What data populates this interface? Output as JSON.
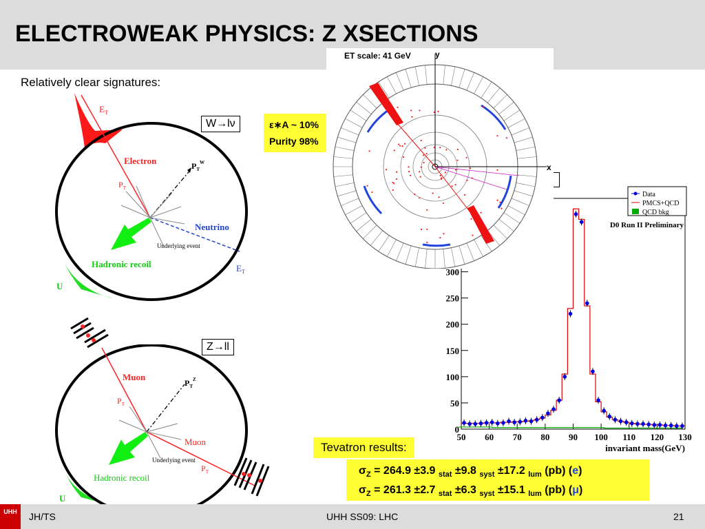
{
  "slide": {
    "title": "ELECTROWEAK PHYSICS: Z XSECTIONS",
    "subtitle": "Relatively clear signatures:"
  },
  "w_diagram": {
    "box_label": "W→lν",
    "et_top": "E",
    "et_top_sub": "T",
    "electron": "Electron",
    "ptw": "P",
    "ptw_sub": "T",
    "ptw_sup": "W",
    "pt": "P",
    "pt_sub": "T",
    "neutrino": "Neutrino",
    "underlying": "Underlying event",
    "hadronic": "Hadronic recoil",
    "u_label": "U",
    "et_bottom": "E",
    "et_bottom_sub": "T"
  },
  "z_diagram": {
    "box_label": "Z→ll",
    "muon_top": "Muon",
    "ptz": "P",
    "ptz_sub": "T",
    "ptz_sup": "Z",
    "pt": "P",
    "pt_sub": "T",
    "muon_right": "Muon",
    "pt_right": "P",
    "pt_right_sub": "T",
    "underlying": "Underlying event",
    "hadronic": "Hadronic recoil",
    "u_label": "U"
  },
  "eff_box": {
    "line1": "ε∗A ~ 10%",
    "line2": "Purity 98%"
  },
  "event_display": {
    "title": "ET scale: 41 GeV",
    "x_axis": "x",
    "y_axis": "y"
  },
  "chart_data": {
    "type": "histogram",
    "xlabel": "invariant mass(GeV)",
    "annotation": "D0 Run II Preliminary",
    "xlim": [
      50,
      130
    ],
    "ylim": [
      0,
      440
    ],
    "xticks": [
      50,
      60,
      70,
      80,
      90,
      100,
      110,
      120,
      130
    ],
    "yticks": [
      0,
      50,
      100,
      150,
      200,
      250,
      300
    ],
    "legend": [
      "Data",
      "PMCS+QCD",
      "QCD bkg"
    ],
    "legend_position": "top-right",
    "series": [
      {
        "name": "Data",
        "x": [
          51,
          53,
          55,
          57,
          59,
          61,
          63,
          65,
          67,
          69,
          71,
          73,
          75,
          77,
          79,
          81,
          83,
          85,
          87,
          89,
          91,
          93,
          95,
          97,
          99,
          101,
          103,
          105,
          107,
          109,
          111,
          113,
          115,
          117,
          119,
          121,
          123,
          125,
          127,
          129
        ],
        "y": [
          12,
          10,
          10,
          11,
          12,
          13,
          11,
          12,
          15,
          13,
          14,
          16,
          15,
          18,
          22,
          30,
          38,
          55,
          100,
          220,
          410,
          395,
          240,
          110,
          55,
          35,
          24,
          18,
          15,
          13,
          11,
          10,
          10,
          9,
          8,
          8,
          7,
          7,
          6,
          6
        ]
      },
      {
        "name": "PMCS+QCD",
        "x": [
          51,
          53,
          55,
          57,
          59,
          61,
          63,
          65,
          67,
          69,
          71,
          73,
          75,
          77,
          79,
          81,
          83,
          85,
          87,
          89,
          91,
          93,
          95,
          97,
          99,
          101,
          103,
          105,
          107,
          109,
          111,
          113,
          115,
          117,
          119,
          121,
          123,
          125,
          127,
          129
        ],
        "y": [
          11,
          11,
          11,
          11,
          12,
          12,
          12,
          13,
          13,
          14,
          14,
          15,
          16,
          18,
          21,
          27,
          36,
          55,
          105,
          230,
          420,
          400,
          235,
          105,
          52,
          33,
          23,
          18,
          15,
          13,
          11,
          10,
          9,
          9,
          8,
          8,
          7,
          7,
          6,
          6
        ]
      },
      {
        "name": "QCD bkg",
        "x": [
          51,
          55,
          59,
          63,
          67,
          71,
          75,
          79,
          83,
          87,
          91,
          95,
          99,
          103,
          107,
          111,
          115,
          119,
          123,
          127
        ],
        "y": [
          4,
          4,
          4,
          3,
          3,
          3,
          3,
          3,
          3,
          3,
          3,
          3,
          3,
          2,
          2,
          2,
          2,
          2,
          2,
          2
        ]
      }
    ],
    "colors": {
      "Data": "#0000dd",
      "PMCS+QCD": "#dd0000",
      "QCD bkg": "#00aa00"
    }
  },
  "results": {
    "tevatron": "Tevatron results:",
    "line1": {
      "sigma": "σ",
      "sub": "Z",
      "a": " = 264.9 ±3.9 ",
      "stat": "stat",
      "b": " ±9.8 ",
      "syst": "syst",
      "c": "  ±17.2 ",
      "lum": "lum",
      "d": " (pb) (",
      "lep": "e",
      "e": ")"
    },
    "line2": {
      "sigma": "σ",
      "sub": "Z",
      "a": " =  261.3 ±2.7 ",
      "stat": "stat",
      "b": " ±6.3 ",
      "syst": "syst",
      "c": "  ±15.1 ",
      "lum": "lum",
      "d": " (pb) (",
      "lep": "μ",
      "e": ")"
    }
  },
  "footer": {
    "logo": "UHH",
    "left": "JH/TS",
    "center": "UHH SS09: LHC",
    "page": "21"
  }
}
